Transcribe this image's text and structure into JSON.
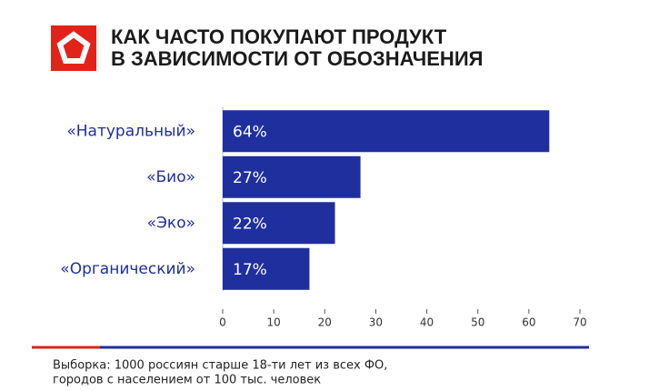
{
  "chart_data": {
    "type": "bar",
    "orientation": "horizontal",
    "title": [
      "КАК ЧАСТО ПОКУПАЮТ ПРОДУКТ",
      "В ЗАВИСИМОСТИ ОТ ОБОЗНАЧЕНИЯ"
    ],
    "categories": [
      "«Натуральный»",
      "«Био»",
      "«Эко»",
      "«Органический»"
    ],
    "values": [
      64,
      27,
      22,
      17
    ],
    "value_labels": [
      "64%",
      "27%",
      "22%",
      "17%"
    ],
    "color": "#1f2f9e",
    "xlim": [
      0,
      70
    ],
    "xticks": [
      0,
      10,
      20,
      30,
      40,
      50,
      60,
      70
    ],
    "note": [
      "Выборка: 1000 россиян старше 18-ти лет из всех ФО,",
      "городов с населением от 100 тыс. человек"
    ]
  }
}
